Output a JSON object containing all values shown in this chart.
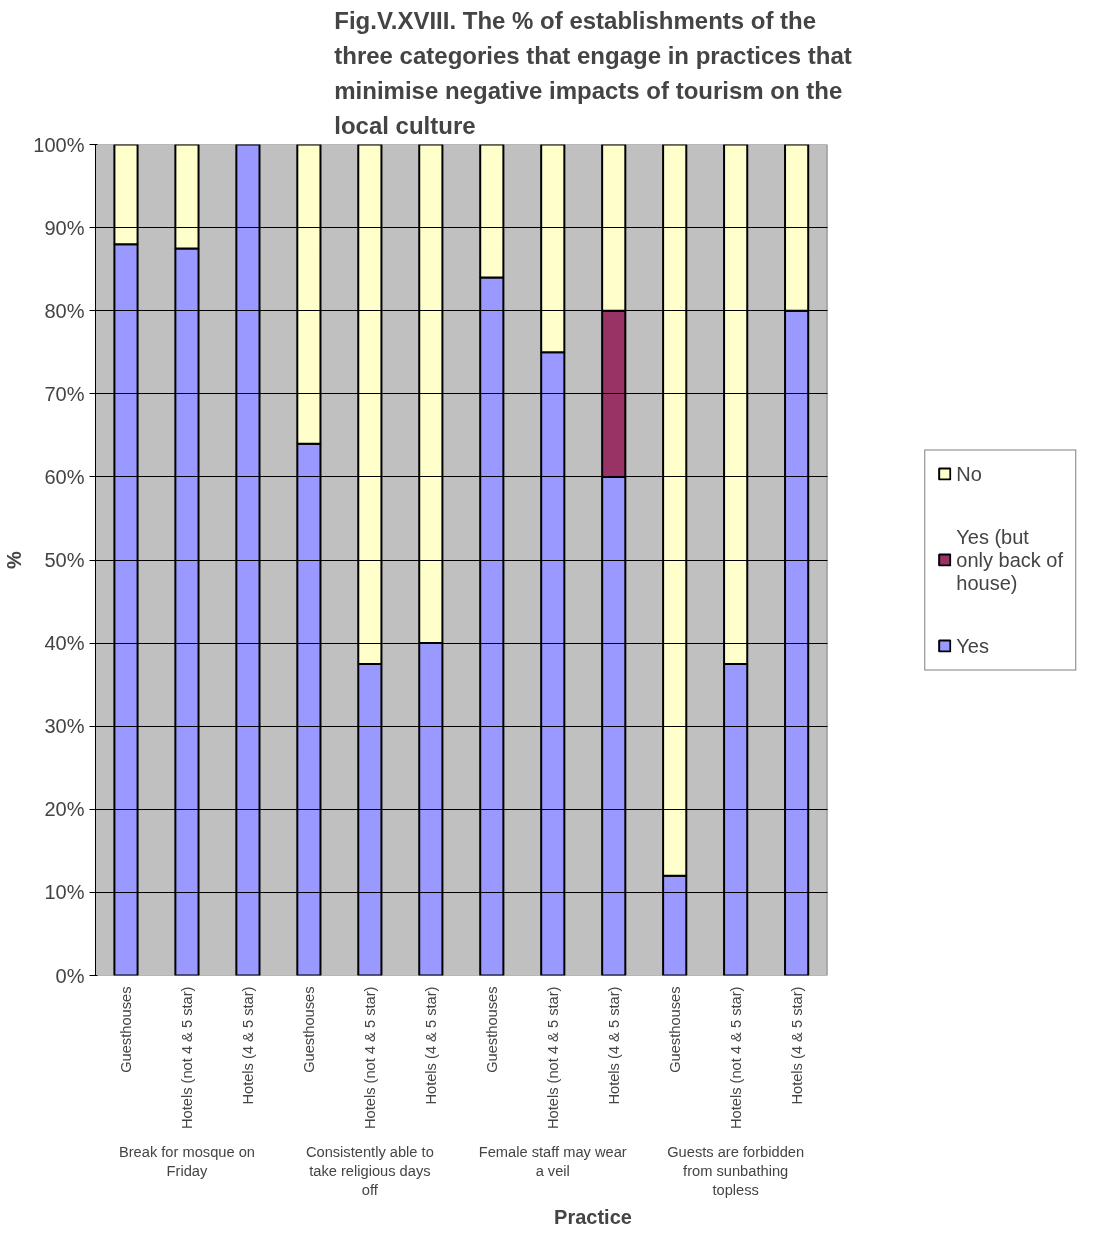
{
  "chart_data": {
    "type": "bar",
    "stacked": true,
    "title": "Fig.V.XVIII.  The % of establishments of the three categories that engage in practices that minimise negative impacts of tourism on the local culture",
    "xlabel": "Practice",
    "ylabel": "%",
    "categories": [
      "Guesthouses",
      "Hotels (not 4 & 5 star)",
      "Hotels (4 & 5 star)",
      "Guesthouses",
      "Hotels (not 4 & 5 star)",
      "Hotels (4 & 5 star)",
      "Guesthouses",
      "Hotels (not 4 & 5 star)",
      "Hotels (4 & 5 star)",
      "Guesthouses",
      "Hotels (not 4 & 5 star)",
      "Hotels (4 & 5 star)"
    ],
    "annotations": [
      "Break for mosque on Friday",
      "Consistently able to take religious days off",
      "Female staff may wear a veil",
      "Guests are forbidden from sunbathing topless"
    ],
    "series": [
      {
        "name": "Yes",
        "color": "#9999ff",
        "values": [
          88,
          87.5,
          100,
          64,
          37.5,
          40,
          84,
          75,
          60,
          12,
          37.5,
          80
        ]
      },
      {
        "name": "Yes (but only back of house)",
        "color": "#993366",
        "values": [
          null,
          null,
          null,
          null,
          null,
          null,
          null,
          null,
          20,
          null,
          null,
          null
        ]
      },
      {
        "name": "No",
        "color": "#ffffcc",
        "values": [
          12,
          12.5,
          null,
          36,
          62.5,
          60,
          16,
          25,
          20,
          88,
          62.5,
          20
        ]
      }
    ],
    "ylim": [
      0,
      100
    ],
    "yticks": [
      {
        "value": 0,
        "label": "0%"
      },
      {
        "value": 10,
        "label": "10%"
      },
      {
        "value": 20,
        "label": "20%"
      },
      {
        "value": 30,
        "label": "30%"
      },
      {
        "value": 40,
        "label": "40%"
      },
      {
        "value": 50,
        "label": "50%"
      },
      {
        "value": 60,
        "label": "60%"
      },
      {
        "value": 70,
        "label": "70%"
      },
      {
        "value": 80,
        "label": "80%"
      },
      {
        "value": 90,
        "label": "90%"
      },
      {
        "value": 100,
        "label": "100%"
      }
    ],
    "grid": "y",
    "legend": "right"
  }
}
